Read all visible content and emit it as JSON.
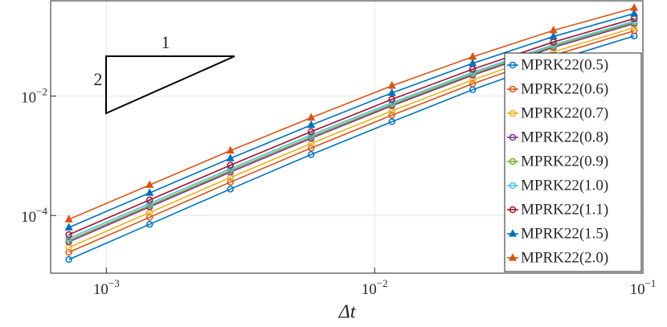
{
  "chart_data": {
    "type": "line",
    "x_label": "Δt",
    "log_x": true,
    "log_y": true,
    "grid": true,
    "legend_position": "right",
    "xlim": [
      0.00062,
      0.1
    ],
    "ylim": [
      1.08e-05,
      0.395
    ],
    "xticks": [
      {
        "value": 0.001,
        "label": "10−3"
      },
      {
        "value": 0.01,
        "label": "10−2"
      },
      {
        "value": 0.1,
        "label": "10−1"
      }
    ],
    "yticks": [
      {
        "value": 0.0001,
        "label": "10−4"
      },
      {
        "value": 0.01,
        "label": "10−2"
      }
    ],
    "annotations": [
      {
        "text": "1"
      },
      {
        "text": "2"
      }
    ],
    "x": [
      0.000725,
      0.00145,
      0.0029,
      0.0058,
      0.0116,
      0.0232,
      0.0464,
      0.0928
    ],
    "series": [
      {
        "name": "MPRK22(0.5)",
        "color": "#0072BD",
        "marker": "circle",
        "values": [
          1.83e-05,
          7.11e-05,
          0.000277,
          0.00105,
          0.00372,
          0.0128,
          0.0389,
          0.1016
        ]
      },
      {
        "name": "MPRK22(0.6)",
        "color": "#D95319",
        "marker": "circle",
        "values": [
          2.42e-05,
          9.33e-05,
          0.000362,
          0.00135,
          0.00478,
          0.0161,
          0.0481,
          0.124
        ]
      },
      {
        "name": "MPRK22(0.7)",
        "color": "#EDB120",
        "marker": "circle",
        "values": [
          2.91e-05,
          0.000112,
          0.000432,
          0.00161,
          0.00565,
          0.0187,
          0.0552,
          0.14
        ]
      },
      {
        "name": "MPRK22(0.8)",
        "color": "#7E2F8E",
        "marker": "circle",
        "values": [
          3.61e-05,
          0.000139,
          0.000532,
          0.00196,
          0.00688,
          0.0224,
          0.0654,
          0.164
        ]
      },
      {
        "name": "MPRK22(0.9)",
        "color": "#77AC30",
        "marker": "circle",
        "values": [
          3.84e-05,
          0.000147,
          0.000565,
          0.00208,
          0.00725,
          0.0236,
          0.0685,
          0.171
        ]
      },
      {
        "name": "MPRK22(1.0)",
        "color": "#4DBEEE",
        "marker": "circle",
        "values": [
          4.15e-05,
          0.000159,
          0.000607,
          0.00224,
          0.00777,
          0.0251,
          0.0727,
          0.18
        ]
      },
      {
        "name": "MPRK22(1.1)",
        "color": "#A2142F",
        "marker": "circle",
        "values": [
          4.78e-05,
          0.000182,
          0.000695,
          0.00254,
          0.00882,
          0.0282,
          0.0805,
          0.198
        ]
      },
      {
        "name": "MPRK22(1.5)",
        "color": "#0072BD",
        "marker": "triangle",
        "values": [
          6.3e-05,
          0.000239,
          0.000906,
          0.00328,
          0.0113,
          0.0353,
          0.0996,
          0.242
        ]
      },
      {
        "name": "MPRK22(2.0)",
        "color": "#D95319",
        "marker": "triangle",
        "values": [
          8.6e-05,
          0.000324,
          0.00122,
          0.00435,
          0.0149,
          0.0455,
          0.126,
          0.3
        ]
      }
    ]
  }
}
